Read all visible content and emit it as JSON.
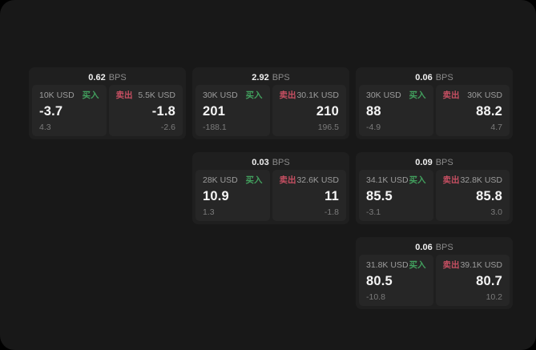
{
  "labels": {
    "bps_unit": "BPS",
    "buy": "买入",
    "sell": "卖出"
  },
  "colors": {
    "page": "#181818",
    "card": "#1f1f1f",
    "panel": "#262626",
    "buy_green": "#42a05e",
    "sell_red": "#c64f62"
  },
  "cards": [
    {
      "row": 1,
      "col": 1,
      "bps": "0.62",
      "buy": {
        "amount": "10K USD",
        "value": "-3.7",
        "delta": "4.3"
      },
      "sell": {
        "amount": "5.5K USD",
        "value": "-1.8",
        "delta": "-2.6"
      }
    },
    {
      "row": 1,
      "col": 2,
      "bps": "2.92",
      "buy": {
        "amount": "30K USD",
        "value": "201",
        "delta": "-188.1"
      },
      "sell": {
        "amount": "30.1K USD",
        "value": "210",
        "delta": "196.5"
      }
    },
    {
      "row": 1,
      "col": 3,
      "bps": "0.06",
      "buy": {
        "amount": "30K USD",
        "value": "88",
        "delta": "-4.9"
      },
      "sell": {
        "amount": "30K USD",
        "value": "88.2",
        "delta": "4.7"
      }
    },
    {
      "row": 2,
      "col": 2,
      "bps": "0.03",
      "buy": {
        "amount": "28K USD",
        "value": "10.9",
        "delta": "1.3"
      },
      "sell": {
        "amount": "32.6K USD",
        "value": "11",
        "delta": "-1.8"
      }
    },
    {
      "row": 2,
      "col": 3,
      "bps": "0.09",
      "buy": {
        "amount": "34.1K USD",
        "value": "85.5",
        "delta": "-3.1"
      },
      "sell": {
        "amount": "32.8K USD",
        "value": "85.8",
        "delta": "3.0"
      }
    },
    {
      "row": 3,
      "col": 3,
      "bps": "0.06",
      "buy": {
        "amount": "31.8K USD",
        "value": "80.5",
        "delta": "-10.8"
      },
      "sell": {
        "amount": "39.1K USD",
        "value": "80.7",
        "delta": "10.2"
      }
    }
  ]
}
